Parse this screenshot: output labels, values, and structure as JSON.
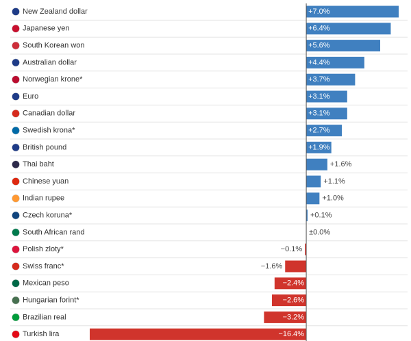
{
  "chart_data": {
    "type": "bar",
    "orientation": "horizontal",
    "categories": [
      "New Zealand dollar",
      "Japanese yen",
      "South Korean won",
      "Australian dollar",
      "Norwegian krone*",
      "Euro",
      "Canadian dollar",
      "Swedish krona*",
      "British pound",
      "Thai baht",
      "Chinese yuan",
      "Indian rupee",
      "Czech koruna*",
      "South African rand",
      "Polish zloty*",
      "Swiss franc*",
      "Mexican peso",
      "Hungarian forint*",
      "Brazilian real",
      "Turkish lira"
    ],
    "values": [
      7.0,
      6.4,
      5.6,
      4.4,
      3.7,
      3.1,
      3.1,
      2.7,
      1.9,
      1.6,
      1.1,
      1.0,
      0.1,
      0.0,
      -0.1,
      -1.6,
      -2.4,
      -2.6,
      -3.2,
      -16.4
    ],
    "value_labels": [
      "+7.0%",
      "+6.4%",
      "+5.6%",
      "+4.4%",
      "+3.7%",
      "+3.1%",
      "+3.1%",
      "+2.7%",
      "+1.9%",
      "+1.6%",
      "+1.1%",
      "+1.0%",
      "+0.1%",
      "±0.0%",
      "−0.1%",
      "−1.6%",
      "−2.4%",
      "−2.6%",
      "−3.2%",
      "−16.4%"
    ],
    "positive_color": "#4080c0",
    "negative_color": "#d0342c"
  }
}
